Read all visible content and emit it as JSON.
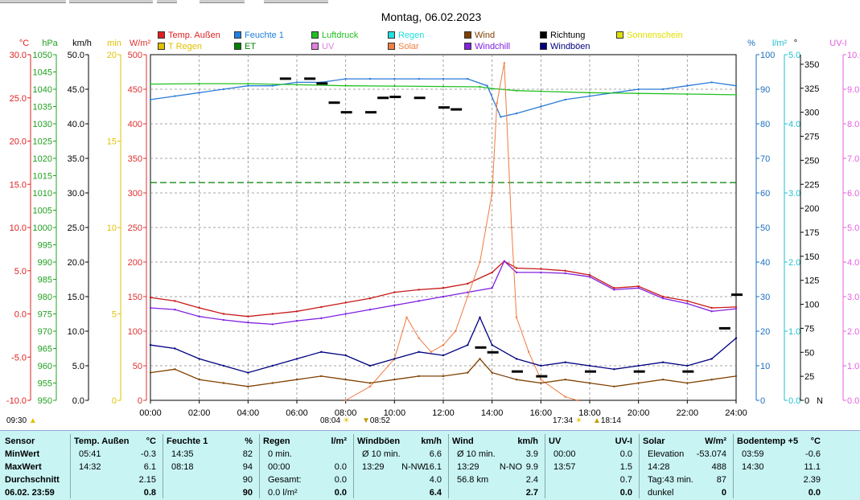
{
  "tabs": [
    "",
    "",
    "",
    "",
    ""
  ],
  "chart_data": {
    "type": "line",
    "title": "Montag, 06.02.2023",
    "x_ticks": [
      "00:00",
      "02:00",
      "04:00",
      "06:00",
      "08:00",
      "10:00",
      "12:00",
      "14:00",
      "16:00",
      "18:00",
      "20:00",
      "22:00",
      "24:00"
    ],
    "x_range_hours": [
      0,
      24
    ],
    "legend": [
      {
        "label": "Temp. Außen",
        "color": "#e02020"
      },
      {
        "label": "Feuchte 1",
        "color": "#2080e0"
      },
      {
        "label": "Luftdruck",
        "color": "#20c020"
      },
      {
        "label": "Regen",
        "color": "#20e0e0"
      },
      {
        "label": "Wind",
        "color": "#804000"
      },
      {
        "label": "Richtung",
        "color": "#000000"
      },
      {
        "label": "Sonnenschein",
        "color": "#e0e000"
      },
      {
        "label": "T Regen",
        "color": "#e0c000"
      },
      {
        "label": "ET",
        "color": "#008000"
      },
      {
        "label": "UV",
        "color": "#e080e0"
      },
      {
        "label": "Solar",
        "color": "#f08040"
      },
      {
        "label": "Windchill",
        "color": "#8020e0"
      },
      {
        "label": "Windböen",
        "color": "#000080"
      }
    ],
    "axes": [
      {
        "unit": "°C",
        "color": "#e02020",
        "ticks": [
          "30.0",
          "25.0",
          "20.0",
          "15.0",
          "10.0",
          "5.0",
          "0.0",
          "-5.0",
          "-10.0"
        ],
        "range": [
          -10,
          30
        ]
      },
      {
        "unit": "hPa",
        "color": "#20a020",
        "ticks": [
          "1050",
          "1045",
          "1040",
          "1035",
          "1030",
          "1025",
          "1020",
          "1015",
          "1010",
          "1005",
          "1000",
          "995",
          "990",
          "985",
          "980",
          "975",
          "970",
          "965",
          "960",
          "955",
          "950"
        ],
        "range": [
          950,
          1050
        ]
      },
      {
        "unit": "km/h",
        "color": "#000000",
        "ticks": [
          "50.0",
          "45.0",
          "40.0",
          "35.0",
          "30.0",
          "25.0",
          "20.0",
          "15.0",
          "10.0",
          "5.0",
          "0.0"
        ],
        "range": [
          0,
          50
        ]
      },
      {
        "unit": "min",
        "color": "#e0c000",
        "ticks": [
          "20",
          "15",
          "10",
          "5",
          "0"
        ],
        "range": [
          0,
          20
        ]
      },
      {
        "unit": "W/m²",
        "color": "#e03030",
        "ticks": [
          "500",
          "450",
          "400",
          "350",
          "300",
          "250",
          "200",
          "150",
          "100",
          "50",
          "0"
        ],
        "range": [
          0,
          500
        ]
      },
      {
        "unit": "%",
        "color": "#1a70c0",
        "ticks": [
          "100",
          "90",
          "80",
          "70",
          "60",
          "50",
          "40",
          "30",
          "20",
          "10",
          "0"
        ],
        "range": [
          0,
          100
        ]
      },
      {
        "unit": "l/m²",
        "color": "#20c0d0",
        "ticks": [
          "5.0",
          "4.0",
          "3.0",
          "2.0",
          "1.0",
          "0.0"
        ],
        "range": [
          0,
          5
        ]
      },
      {
        "unit": "°",
        "color": "#000000",
        "ticks": [
          "350",
          "325",
          "300",
          "275",
          "250",
          "225",
          "200",
          "175",
          "150",
          "125",
          "100",
          "75",
          "50",
          "25",
          "0"
        ],
        "range": [
          0,
          360
        ],
        "extra": "N"
      },
      {
        "unit": "UV-I",
        "color": "#e060e0",
        "ticks": [
          "10.0",
          "9.0",
          "8.0",
          "7.0",
          "6.0",
          "5.0",
          "4.0",
          "3.0",
          "2.0",
          "1.0",
          "0.0"
        ],
        "range": [
          0,
          10
        ]
      }
    ],
    "series": [
      {
        "name": "Temp. Außen",
        "color": "#c81818",
        "axis": "°C",
        "x": [
          0,
          1,
          2,
          3,
          4,
          5,
          6,
          7,
          8,
          9,
          10,
          11,
          12,
          13,
          14,
          14.5,
          15,
          16,
          17,
          18,
          19,
          20,
          21,
          22,
          23,
          24
        ],
        "y": [
          1.9,
          1.5,
          0.7,
          0.0,
          -0.3,
          0.0,
          0.3,
          0.8,
          1.3,
          1.8,
          2.5,
          2.8,
          3.0,
          3.5,
          4.8,
          6.1,
          5.3,
          5.2,
          5.0,
          4.5,
          3.0,
          3.2,
          2.0,
          1.5,
          0.7,
          0.8
        ]
      },
      {
        "name": "Feuchte 1",
        "color": "#2a7ad8",
        "axis": "%",
        "x": [
          0,
          1,
          2,
          3,
          4,
          5,
          6,
          7,
          8,
          9,
          10,
          11,
          12,
          13,
          13.8,
          14.35,
          15,
          16,
          17,
          18,
          19,
          20,
          21,
          22,
          23,
          24
        ],
        "y": [
          87,
          88,
          89,
          90,
          91,
          91,
          92,
          92,
          93,
          93,
          93,
          93,
          93,
          93,
          91,
          82,
          83,
          85,
          87,
          88,
          89,
          90,
          90,
          91,
          92,
          91
        ]
      },
      {
        "name": "Luftdruck",
        "color": "#22c022",
        "axis": "hPa",
        "x": [
          0,
          2,
          4,
          6,
          8,
          10,
          12,
          13.5,
          14,
          15,
          16,
          18,
          20,
          22,
          24
        ],
        "y": [
          1041.5,
          1041.6,
          1041.6,
          1041.3,
          1041.0,
          1040.9,
          1040.8,
          1040.7,
          1040.2,
          1039.6,
          1039.4,
          1039.0,
          1038.8,
          1038.6,
          1038.4
        ]
      },
      {
        "name": "Windchill",
        "color": "#8020e0",
        "axis": "°C",
        "x": [
          0,
          1,
          2,
          3,
          4,
          5,
          6,
          7,
          8,
          9,
          10,
          11,
          12,
          13,
          14,
          14.5,
          15,
          16,
          17,
          18,
          19,
          20,
          21,
          22,
          23,
          24
        ],
        "y": [
          0.7,
          0.5,
          -0.3,
          -0.7,
          -1.0,
          -1.2,
          -0.8,
          -0.5,
          0.0,
          0.5,
          1.0,
          1.5,
          2.0,
          2.5,
          3.0,
          6.1,
          4.8,
          4.8,
          4.7,
          4.3,
          2.8,
          3.0,
          1.8,
          1.2,
          0.3,
          0.6
        ]
      },
      {
        "name": "Solar",
        "color": "#f07a40",
        "axis": "W/m²",
        "x": [
          8,
          9,
          10,
          10.5,
          11,
          11.5,
          12,
          12.5,
          13,
          13.5,
          14,
          14.2,
          14.5,
          14.8,
          15,
          15.5,
          16,
          17,
          17.5
        ],
        "y": [
          0,
          20,
          60,
          120,
          90,
          70,
          80,
          100,
          150,
          200,
          300,
          430,
          488,
          250,
          120,
          70,
          30,
          5,
          0
        ]
      },
      {
        "name": "Wind",
        "color": "#804000",
        "axis": "km/h",
        "x": [
          0,
          1,
          2,
          3,
          4,
          5,
          6,
          7,
          8,
          9,
          10,
          11,
          12,
          13,
          13.5,
          14,
          15,
          16,
          17,
          18,
          19,
          20,
          21,
          22,
          23,
          24
        ],
        "y": [
          4.0,
          4.5,
          3.0,
          2.5,
          2.0,
          2.5,
          3.0,
          3.5,
          3.0,
          2.5,
          3.0,
          3.5,
          3.5,
          4.0,
          6.0,
          4.0,
          3.0,
          2.5,
          3.0,
          2.5,
          2.0,
          2.5,
          3.0,
          2.5,
          3.0,
          3.5
        ]
      },
      {
        "name": "Windböen",
        "color": "#000080",
        "axis": "km/h",
        "x": [
          0,
          1,
          2,
          3,
          4,
          5,
          6,
          7,
          8,
          9,
          10,
          11,
          12,
          13,
          13.5,
          14,
          15,
          16,
          17,
          18,
          19,
          20,
          21,
          22,
          23,
          24
        ],
        "y": [
          8.0,
          7.5,
          6.0,
          5.0,
          4.0,
          5.0,
          6.0,
          7.0,
          6.5,
          5.0,
          6.0,
          7.0,
          6.5,
          8.0,
          12.0,
          8.0,
          6.0,
          5.0,
          5.5,
          5.0,
          4.5,
          5.0,
          5.5,
          5.0,
          6.0,
          9.0
        ]
      },
      {
        "name": "Richtung",
        "color": "#000000",
        "axis": "°",
        "x": [
          5.5,
          6.5,
          7.0,
          7.5,
          8.0,
          9.0,
          9.5,
          10.0,
          11.0,
          12.0,
          12.5,
          13.5,
          14.0,
          15.0,
          16.0,
          18.0,
          20.0,
          22.0,
          23.5,
          24.0
        ],
        "y": [
          335,
          335,
          330,
          310,
          300,
          300,
          315,
          316,
          315,
          305,
          303,
          55,
          50,
          30,
          25,
          30,
          30,
          30,
          75,
          110
        ]
      }
    ],
    "ref_lines": [
      {
        "name": "ET",
        "color": "#008000",
        "axis": "%",
        "value": 63,
        "dashed": true
      }
    ]
  },
  "markers": {
    "sunrise_left": "09:30",
    "sunrise": "08:04",
    "sun_transit": "08:52",
    "sunset": "17:34",
    "sunset2": "18:14"
  },
  "panel": {
    "rows": [
      "Sensor",
      "MinWert",
      "MaxWert",
      "Durchschnitt",
      "06.02. 23:59"
    ],
    "columns": [
      {
        "head": "Temp. Außen",
        "unit": "°C",
        "min_time": "05:41",
        "min": "-0.3",
        "max_time": "14:32",
        "max": "6.1",
        "avg": "2.15",
        "cur": "0.8"
      },
      {
        "head": "Feuchte 1",
        "unit": "%",
        "min_time": "14:35",
        "min": "82",
        "max_time": "08:18",
        "max": "94",
        "avg": "90",
        "cur": "90"
      },
      {
        "head": "Regen",
        "unit": "l/m²",
        "min_time": "0 min.",
        "min": "",
        "max_time": "00:00",
        "max": "0.0",
        "avg": "Gesamt:",
        "avg_val": "0.0",
        "cur_label": "0.0 l/m²",
        "cur": "0.0"
      },
      {
        "head": "Windböen",
        "unit": "km/h",
        "min_time": "Ø 10 min.",
        "min": "6.6",
        "max_time": "13:29",
        "max_dir": "N-NW",
        "max": "16.1",
        "avg": "4.0",
        "cur": "6.4"
      },
      {
        "head": "Wind",
        "unit": "km/h",
        "min_time": "Ø 10 min.",
        "min": "3.9",
        "max_time": "13:29",
        "max_dir": "N-NO",
        "max": "9.9",
        "avg_label": "56.8 km",
        "avg": "2.4",
        "cur": "2.7"
      },
      {
        "head": "UV",
        "unit": "UV-I",
        "min_time": "00:00",
        "min": "0.0",
        "max_time": "13:57",
        "max": "1.5",
        "avg": "0.7",
        "cur": "0.0"
      },
      {
        "head": "Solar",
        "unit": "W/m²",
        "min_time": "Elevation",
        "min": "-53.074",
        "max_time": "14:28",
        "max": "488",
        "avg_label": "Tag:43 min.",
        "avg": "87",
        "cur_label": "dunkel",
        "cur": "0"
      },
      {
        "head": "Bodentemp +5",
        "unit": "°C",
        "min_time": "03:59",
        "min": "-0.6",
        "max_time": "14:30",
        "max": "11.1",
        "avg": "2.39",
        "cur": "0.0"
      }
    ]
  }
}
